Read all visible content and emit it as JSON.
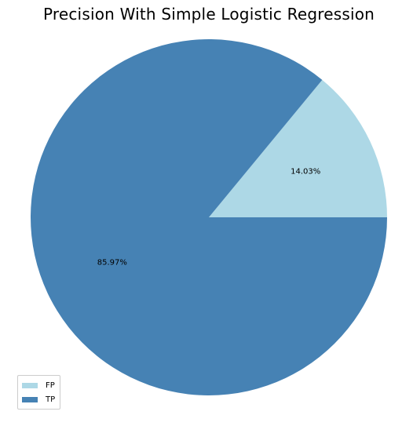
{
  "chart_data": {
    "type": "pie",
    "title": "Precision With Simple Logistic Regression",
    "slices": [
      {
        "label": "FP",
        "value": 14.03,
        "display": "14.03%",
        "color": "#add8e6"
      },
      {
        "label": "TP",
        "value": 85.97,
        "display": "85.97%",
        "color": "#4682b4"
      }
    ],
    "start_angle_deg": 0,
    "direction": "counterclockwise",
    "legend_position": "lower-left"
  }
}
